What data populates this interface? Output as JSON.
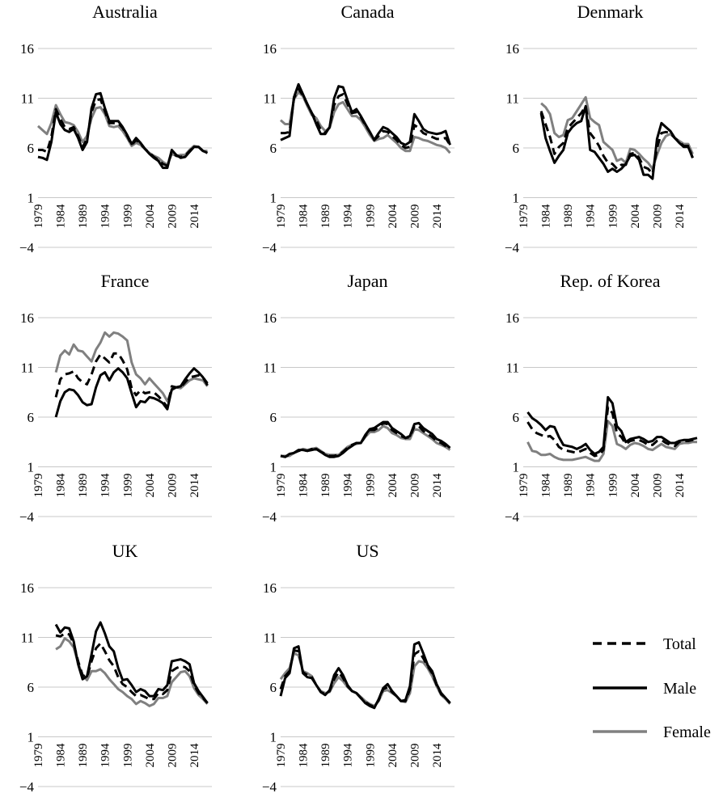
{
  "chart_data": {
    "type": "line",
    "ylim": [
      -4,
      16
    ],
    "yticks": [
      "−4",
      "1",
      "6",
      "11",
      "16"
    ],
    "ytick_values": [
      -4,
      1,
      6,
      11,
      16
    ],
    "xlim": [
      1979,
      2018
    ],
    "xticks": [
      "1979",
      "1984",
      "1989",
      "1994",
      "1999",
      "2004",
      "2009",
      "2014"
    ],
    "xtick_values": [
      1979,
      1984,
      1989,
      1994,
      1999,
      2004,
      2009,
      2014
    ],
    "grid": "horizontal",
    "legend": {
      "placement": "bottom-right",
      "entries": [
        {
          "label": "Total",
          "style": "dashed",
          "color": "#000000"
        },
        {
          "label": "Male",
          "style": "solid",
          "color": "#000000"
        },
        {
          "label": "Female",
          "style": "solid",
          "color": "#808080"
        }
      ]
    },
    "series_styles": {
      "total": {
        "color": "#000000",
        "dash": "10,6"
      },
      "male": {
        "color": "#000000",
        "dash": ""
      },
      "female": {
        "color": "#808080",
        "dash": ""
      }
    },
    "panels": [
      {
        "title": "Australia",
        "total": {
          "start": 1979,
          "values": [
            5.8,
            5.8,
            5.6,
            7.1,
            9.9,
            8.9,
            8.1,
            7.9,
            8.1,
            7.2,
            6.1,
            6.9,
            9.6,
            10.8,
            10.9,
            9.7,
            8.5,
            8.5,
            8.5,
            8.0,
            7.2,
            6.3,
            6.8,
            6.4,
            5.9,
            5.5,
            5.1,
            4.8,
            4.4,
            4.2,
            5.6,
            5.2,
            5.1,
            5.2,
            5.7,
            6.1,
            6.1,
            5.7,
            5.6
          ]
        },
        "male": {
          "start": 1979,
          "values": [
            5.1,
            5.0,
            4.8,
            6.6,
            9.6,
            8.4,
            7.8,
            7.6,
            7.9,
            7.0,
            5.8,
            6.6,
            10.0,
            11.4,
            11.5,
            10.0,
            8.7,
            8.7,
            8.7,
            8.1,
            7.3,
            6.4,
            7.0,
            6.5,
            5.9,
            5.4,
            5.0,
            4.7,
            4.0,
            4.0,
            5.8,
            5.3,
            5.0,
            5.1,
            5.6,
            6.1,
            6.1,
            5.7,
            5.5
          ]
        },
        "female": {
          "start": 1979,
          "values": [
            8.2,
            7.8,
            7.4,
            8.5,
            10.3,
            9.4,
            8.6,
            8.5,
            8.3,
            7.6,
            6.6,
            7.2,
            9.0,
            10.0,
            10.1,
            9.4,
            8.2,
            8.1,
            8.2,
            7.7,
            7.0,
            6.2,
            6.5,
            6.3,
            5.9,
            5.5,
            5.2,
            5.0,
            4.6,
            4.3,
            5.4,
            5.2,
            5.3,
            5.3,
            5.8,
            6.2,
            6.1,
            5.7,
            5.7
          ]
        }
      },
      {
        "title": "Canada",
        "total": {
          "start": 1979,
          "values": [
            7.5,
            7.5,
            7.6,
            11.0,
            11.9,
            11.3,
            10.4,
            9.5,
            8.8,
            7.8,
            7.5,
            8.1,
            10.3,
            11.2,
            11.4,
            10.4,
            9.5,
            9.6,
            9.1,
            8.3,
            7.6,
            6.8,
            7.2,
            7.7,
            7.6,
            7.2,
            6.8,
            6.3,
            6.0,
            6.1,
            8.3,
            8.0,
            7.5,
            7.3,
            7.1,
            6.9,
            6.9,
            7.0,
            6.3
          ]
        },
        "male": {
          "start": 1979,
          "values": [
            6.8,
            7.0,
            7.2,
            11.1,
            12.4,
            11.4,
            10.4,
            9.5,
            8.4,
            7.4,
            7.4,
            8.1,
            11.0,
            12.2,
            12.1,
            10.8,
            9.6,
            9.9,
            9.2,
            8.4,
            7.6,
            6.8,
            7.5,
            8.1,
            7.9,
            7.5,
            7.1,
            6.5,
            6.3,
            6.6,
            9.4,
            8.7,
            7.9,
            7.6,
            7.5,
            7.4,
            7.5,
            7.7,
            6.3
          ]
        },
        "female": {
          "start": 1979,
          "values": [
            8.8,
            8.4,
            8.4,
            10.9,
            11.6,
            11.2,
            10.2,
            9.3,
            9.0,
            8.2,
            7.7,
            8.0,
            9.6,
            10.4,
            10.6,
            9.9,
            9.2,
            9.2,
            8.8,
            8.1,
            7.3,
            6.7,
            6.9,
            7.0,
            7.3,
            6.9,
            6.5,
            6.0,
            5.7,
            5.7,
            7.1,
            7.0,
            6.8,
            6.7,
            6.5,
            6.3,
            6.2,
            6.0,
            5.5
          ]
        }
      },
      {
        "title": "Denmark",
        "total": {
          "start": 1983,
          "values": [
            9.7,
            8.4,
            7.1,
            5.4,
            6.1,
            6.5,
            8.0,
            8.5,
            9.0,
            9.5,
            10.2,
            7.5,
            6.9,
            6.2,
            5.2,
            4.5,
            4.4,
            3.9,
            4.3,
            4.3,
            5.4,
            5.5,
            5.0,
            4.1,
            3.9,
            3.4,
            6.0,
            7.5,
            7.6,
            7.5,
            7.0,
            6.6,
            6.2,
            6.2,
            5.0
          ]
        },
        "male": {
          "start": 1983,
          "values": [
            9.5,
            7.0,
            5.7,
            4.5,
            5.2,
            5.8,
            7.5,
            8.1,
            8.5,
            8.7,
            10.2,
            5.8,
            5.6,
            5.0,
            4.4,
            3.6,
            3.9,
            3.6,
            3.9,
            4.4,
            5.2,
            5.3,
            4.8,
            3.3,
            3.3,
            2.9,
            6.9,
            8.5,
            8.1,
            7.7,
            7.0,
            6.5,
            6.1,
            6.1,
            5.0
          ]
        },
        "female": {
          "start": 1983,
          "values": [
            10.5,
            10.1,
            9.4,
            7.5,
            7.1,
            7.3,
            8.8,
            9.0,
            9.7,
            10.4,
            11.1,
            9.0,
            8.6,
            8.3,
            6.6,
            6.2,
            5.8,
            4.7,
            4.9,
            4.5,
            5.9,
            5.8,
            5.4,
            4.9,
            4.5,
            3.9,
            5.3,
            6.5,
            7.2,
            7.4,
            7.0,
            6.7,
            6.4,
            6.4,
            5.4
          ]
        }
      },
      {
        "title": "France",
        "total": {
          "start": 1983,
          "values": [
            8.0,
            9.8,
            10.3,
            10.4,
            10.6,
            9.9,
            9.5,
            9.3,
            10.3,
            11.6,
            12.3,
            11.9,
            11.5,
            12.4,
            12.4,
            11.7,
            10.8,
            8.9,
            8.2,
            8.7,
            8.4,
            8.5,
            8.5,
            8.1,
            7.6,
            7.0,
            9.1,
            9.0,
            9.0,
            9.5,
            10.0,
            10.1,
            10.2,
            10.0,
            9.4
          ]
        },
        "male": {
          "start": 1983,
          "values": [
            6.0,
            7.6,
            8.5,
            8.8,
            8.7,
            8.2,
            7.5,
            7.2,
            7.3,
            9.0,
            10.2,
            10.5,
            9.7,
            10.5,
            10.9,
            10.5,
            9.9,
            8.4,
            7.0,
            7.6,
            7.5,
            8.0,
            7.9,
            7.7,
            7.4,
            6.8,
            8.8,
            9.0,
            9.1,
            9.8,
            10.4,
            10.9,
            10.5,
            10.0,
            9.2
          ]
        },
        "female": {
          "start": 1983,
          "values": [
            10.5,
            12.2,
            12.7,
            12.3,
            13.3,
            12.7,
            12.6,
            12.1,
            11.6,
            12.8,
            13.5,
            14.5,
            14.1,
            14.5,
            14.4,
            14.1,
            13.7,
            11.5,
            10.3,
            9.9,
            9.3,
            9.9,
            9.4,
            8.9,
            8.4,
            7.6,
            8.7,
            9.0,
            8.9,
            9.3,
            9.7,
            9.9,
            9.8,
            9.7,
            9.1
          ]
        }
      },
      {
        "title": "Japan",
        "total": {
          "start": 1979,
          "values": [
            2.1,
            2.0,
            2.2,
            2.4,
            2.6,
            2.7,
            2.6,
            2.8,
            2.8,
            2.5,
            2.3,
            2.1,
            2.1,
            2.2,
            2.5,
            2.9,
            3.2,
            3.4,
            3.4,
            4.1,
            4.7,
            4.7,
            5.0,
            5.4,
            5.3,
            4.7,
            4.4,
            4.1,
            3.9,
            4.0,
            5.1,
            5.1,
            4.6,
            4.3,
            4.0,
            3.6,
            3.4,
            3.1,
            2.8
          ]
        },
        "male": {
          "start": 1979,
          "values": [
            2.1,
            2.0,
            2.3,
            2.4,
            2.7,
            2.7,
            2.6,
            2.7,
            2.8,
            2.5,
            2.2,
            2.0,
            2.0,
            2.1,
            2.4,
            2.8,
            3.1,
            3.4,
            3.4,
            4.2,
            4.8,
            4.9,
            5.2,
            5.5,
            5.5,
            4.9,
            4.6,
            4.3,
            3.9,
            4.1,
            5.3,
            5.4,
            4.9,
            4.6,
            4.3,
            3.8,
            3.6,
            3.3,
            2.9
          ]
        },
        "female": {
          "start": 1979,
          "values": [
            2.1,
            2.1,
            2.1,
            2.4,
            2.6,
            2.8,
            2.7,
            2.8,
            2.9,
            2.6,
            2.3,
            2.2,
            2.2,
            2.2,
            2.6,
            3.0,
            3.2,
            3.3,
            3.4,
            4.0,
            4.5,
            4.5,
            4.7,
            5.1,
            4.9,
            4.4,
            4.2,
            3.9,
            3.8,
            3.8,
            4.8,
            4.7,
            4.4,
            4.1,
            3.8,
            3.4,
            3.2,
            3.0,
            2.7
          ]
        }
      },
      {
        "title": "Rep. of Korea",
        "total": {
          "start": 1980,
          "values": [
            5.5,
            4.8,
            4.4,
            4.2,
            4.0,
            4.1,
            3.7,
            3.0,
            2.7,
            2.6,
            2.5,
            2.4,
            2.6,
            2.8,
            2.4,
            2.1,
            2.2,
            2.7,
            7.0,
            6.4,
            4.4,
            4.0,
            3.3,
            3.6,
            3.7,
            3.7,
            3.5,
            3.2,
            3.2,
            3.6,
            3.7,
            3.4,
            3.2,
            3.1,
            3.5,
            3.6,
            3.6,
            3.7,
            3.8
          ]
        },
        "male": {
          "start": 1980,
          "values": [
            6.5,
            5.9,
            5.6,
            5.2,
            4.7,
            5.1,
            5.0,
            4.0,
            3.2,
            3.1,
            3.0,
            2.8,
            3.0,
            3.3,
            2.7,
            2.3,
            2.5,
            3.0,
            8.0,
            7.4,
            5.1,
            4.6,
            3.5,
            3.8,
            3.9,
            4.0,
            3.8,
            3.5,
            3.6,
            4.0,
            4.0,
            3.7,
            3.4,
            3.4,
            3.6,
            3.7,
            3.7,
            3.8,
            3.9
          ]
        },
        "female": {
          "start": 1980,
          "values": [
            3.5,
            2.6,
            2.5,
            2.2,
            2.2,
            2.3,
            2.0,
            1.8,
            1.7,
            1.7,
            1.7,
            1.8,
            1.9,
            2.0,
            1.8,
            1.6,
            1.6,
            2.3,
            5.6,
            5.1,
            3.3,
            3.1,
            2.8,
            3.2,
            3.4,
            3.3,
            3.1,
            2.8,
            2.7,
            3.0,
            3.3,
            3.0,
            2.9,
            2.8,
            3.3,
            3.4,
            3.4,
            3.5,
            3.5
          ]
        }
      },
      {
        "title": "UK",
        "total": {
          "start": 1983,
          "values": [
            11.2,
            11.1,
            11.4,
            11.3,
            10.4,
            8.6,
            7.2,
            7.0,
            8.6,
            9.9,
            10.4,
            9.6,
            8.7,
            8.1,
            7.0,
            6.3,
            6.0,
            5.5,
            5.1,
            5.2,
            5.0,
            4.8,
            4.8,
            5.4,
            5.3,
            5.7,
            7.6,
            7.9,
            8.1,
            8.0,
            7.6,
            6.2,
            5.4,
            4.9,
            4.4
          ]
        },
        "male": {
          "start": 1983,
          "values": [
            12.3,
            11.5,
            12.0,
            11.9,
            10.6,
            8.3,
            6.8,
            7.1,
            9.3,
            11.6,
            12.5,
            11.4,
            10.1,
            9.6,
            7.9,
            6.7,
            6.8,
            6.2,
            5.5,
            5.8,
            5.6,
            5.1,
            5.1,
            5.8,
            5.7,
            6.2,
            8.6,
            8.7,
            8.8,
            8.6,
            8.3,
            6.4,
            5.6,
            5.0,
            4.4
          ]
        },
        "female": {
          "start": 1983,
          "values": [
            9.8,
            10.1,
            10.9,
            10.6,
            10.0,
            8.4,
            7.2,
            6.7,
            7.6,
            7.6,
            7.8,
            7.4,
            6.8,
            6.3,
            5.8,
            5.5,
            5.1,
            4.8,
            4.3,
            4.6,
            4.4,
            4.1,
            4.3,
            4.9,
            4.9,
            5.1,
            6.5,
            7.0,
            7.5,
            7.6,
            7.1,
            5.9,
            5.2,
            4.8,
            4.3
          ]
        }
      },
      {
        "title": "US",
        "total": {
          "start": 1979,
          "values": [
            5.8,
            7.1,
            7.6,
            9.7,
            9.6,
            7.5,
            7.2,
            7.0,
            6.2,
            5.5,
            5.3,
            5.6,
            6.8,
            7.5,
            6.9,
            6.1,
            5.6,
            5.4,
            4.9,
            4.5,
            4.2,
            4.0,
            4.7,
            5.8,
            6.0,
            5.5,
            5.1,
            4.6,
            4.6,
            5.8,
            9.3,
            9.6,
            8.9,
            8.1,
            7.4,
            6.2,
            5.3,
            4.9,
            4.4
          ]
        },
        "male": {
          "start": 1979,
          "values": [
            5.1,
            6.9,
            7.4,
            9.9,
            10.1,
            7.4,
            7.0,
            6.9,
            6.2,
            5.5,
            5.2,
            5.7,
            7.2,
            7.9,
            7.2,
            6.2,
            5.6,
            5.4,
            4.9,
            4.4,
            4.1,
            3.9,
            4.8,
            5.9,
            6.3,
            5.6,
            5.1,
            4.6,
            4.7,
            6.1,
            10.3,
            10.5,
            9.4,
            8.2,
            7.6,
            6.3,
            5.4,
            4.9,
            4.4
          ]
        },
        "female": {
          "start": 1979,
          "values": [
            6.8,
            7.4,
            7.9,
            9.4,
            9.2,
            7.6,
            7.4,
            7.1,
            6.2,
            5.6,
            5.4,
            5.5,
            6.4,
            7.0,
            6.6,
            6.0,
            5.6,
            5.4,
            5.0,
            4.6,
            4.3,
            4.1,
            4.6,
            5.6,
            5.7,
            5.4,
            5.1,
            4.6,
            4.5,
            5.4,
            8.1,
            8.6,
            8.5,
            7.9,
            7.1,
            6.1,
            5.2,
            4.8,
            4.3
          ]
        }
      }
    ]
  }
}
